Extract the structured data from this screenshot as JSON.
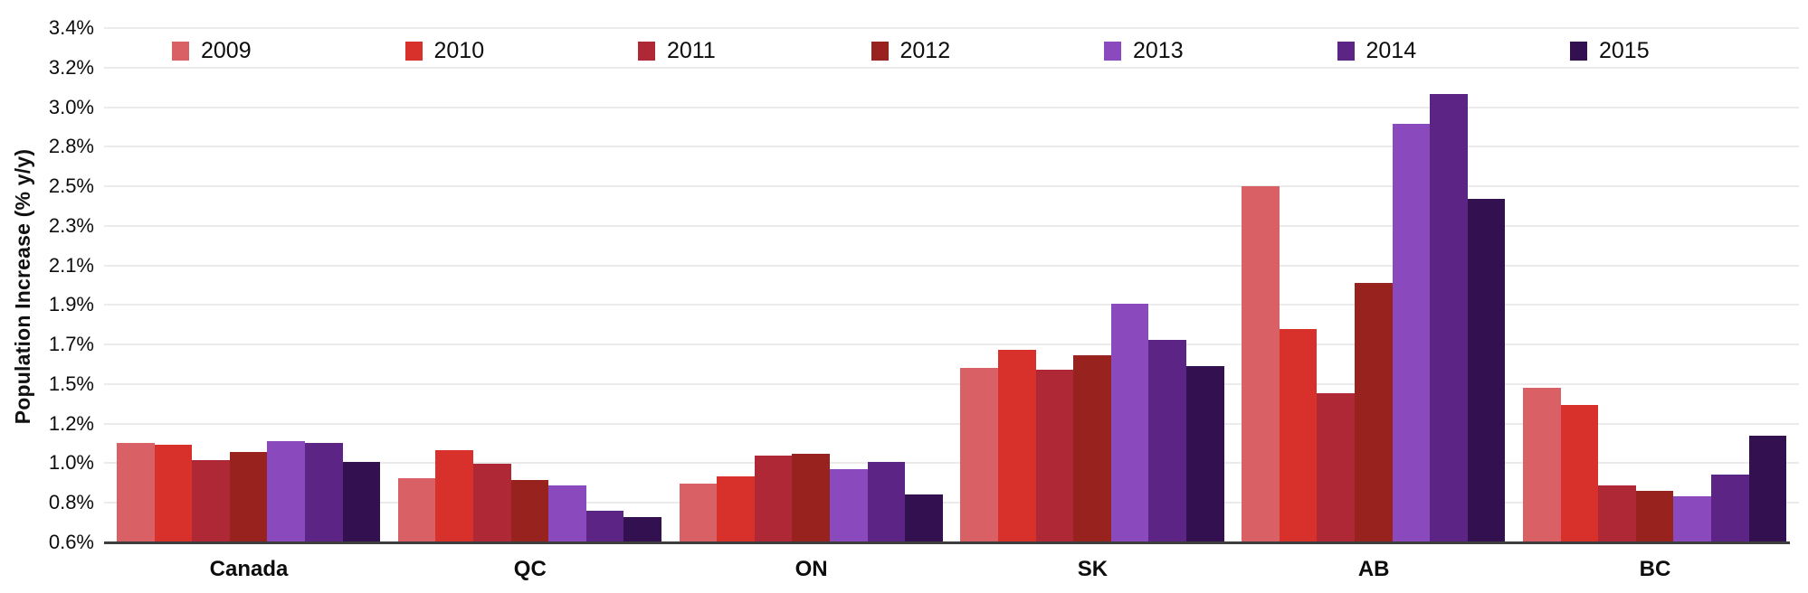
{
  "chart_data": {
    "type": "bar",
    "title": "",
    "xlabel": "",
    "ylabel": "Population Increase (% y/y)",
    "ylim": [
      0.6,
      3.4
    ],
    "grid": true,
    "legend_position": "top",
    "y_tick_labels": [
      "3.4%",
      "3.2%",
      "3.0%",
      "2.8%",
      "2.5%",
      "2.3%",
      "2.1%",
      "1.9%",
      "1.7%",
      "1.5%",
      "1.2%",
      "1.0%",
      "0.8%",
      "0.6%"
    ],
    "y_tick_values": [
      3.4,
      3.1846,
      2.9692,
      2.7538,
      2.5385,
      2.3231,
      2.1077,
      1.8923,
      1.6769,
      1.4615,
      1.2462,
      1.0308,
      0.8154,
      0.6
    ],
    "categories": [
      "Canada",
      "QC",
      "ON",
      "SK",
      "AB",
      "BC"
    ],
    "series": [
      {
        "name": "2009",
        "color": "#D96065",
        "values": [
          1.14,
          0.95,
          0.92,
          1.55,
          2.54,
          1.44
        ]
      },
      {
        "name": "2010",
        "color": "#D8302A",
        "values": [
          1.13,
          1.1,
          0.96,
          1.65,
          1.76,
          1.35
        ]
      },
      {
        "name": "2011",
        "color": "#AE2935",
        "values": [
          1.05,
          1.03,
          1.07,
          1.54,
          1.41,
          0.91
        ]
      },
      {
        "name": "2012",
        "color": "#97221E",
        "values": [
          1.09,
          0.94,
          1.08,
          1.62,
          2.01,
          0.88
        ]
      },
      {
        "name": "2013",
        "color": "#8A49BC",
        "values": [
          1.15,
          0.91,
          1.0,
          1.9,
          2.88,
          0.85
        ]
      },
      {
        "name": "2014",
        "color": "#5C2585",
        "values": [
          1.14,
          0.77,
          1.04,
          1.7,
          3.04,
          0.97
        ]
      },
      {
        "name": "2015",
        "color": "#33104F",
        "values": [
          1.04,
          0.74,
          0.86,
          1.56,
          2.47,
          1.18
        ]
      }
    ],
    "grid_color": "#EBEBEB",
    "axis_line_color": "#3D3D3D",
    "text_color": "#0D0D0D"
  }
}
